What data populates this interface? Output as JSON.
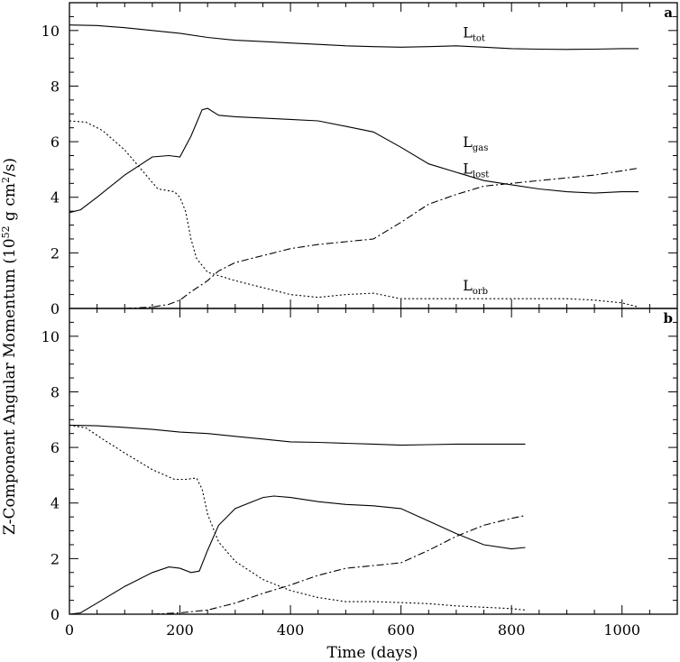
{
  "chart_data": [
    {
      "panel": "a",
      "type": "line",
      "xlabel": "Time (days)",
      "ylabel": "Z-Component Angular Momentum (10^52 g cm^2/s)",
      "xlim": [
        0,
        1100
      ],
      "ylim": [
        0,
        11
      ],
      "xticks": [
        0,
        200,
        400,
        600,
        800,
        1000
      ],
      "yticks": [
        0,
        2,
        4,
        6,
        8,
        10
      ],
      "series": [
        {
          "name": "tot",
          "label_main": "L",
          "label_sub": "tot",
          "style": "solid",
          "x": [
            0,
            50,
            100,
            150,
            200,
            250,
            300,
            350,
            400,
            450,
            500,
            550,
            600,
            650,
            700,
            750,
            800,
            850,
            900,
            950,
            1000,
            1030
          ],
          "y": [
            10.2,
            10.18,
            10.1,
            10.0,
            9.9,
            9.75,
            9.65,
            9.6,
            9.55,
            9.5,
            9.45,
            9.42,
            9.4,
            9.42,
            9.45,
            9.4,
            9.35,
            9.33,
            9.32,
            9.33,
            9.35,
            9.35
          ]
        },
        {
          "name": "gas",
          "label_main": "L",
          "label_sub": "gas",
          "style": "solid",
          "x": [
            0,
            20,
            50,
            100,
            150,
            180,
            200,
            220,
            240,
            250,
            270,
            300,
            350,
            400,
            450,
            500,
            550,
            600,
            650,
            700,
            750,
            800,
            850,
            900,
            950,
            1000,
            1030
          ],
          "y": [
            3.45,
            3.55,
            4.0,
            4.8,
            5.45,
            5.5,
            5.45,
            6.2,
            7.15,
            7.2,
            6.95,
            6.9,
            6.85,
            6.8,
            6.75,
            6.55,
            6.35,
            5.8,
            5.2,
            4.9,
            4.6,
            4.45,
            4.3,
            4.2,
            4.15,
            4.2,
            4.2
          ]
        },
        {
          "name": "lost",
          "label_main": "L",
          "label_sub": "lost",
          "style": "dashdot",
          "x": [
            100,
            150,
            180,
            200,
            220,
            250,
            270,
            300,
            350,
            400,
            450,
            500,
            550,
            600,
            650,
            700,
            750,
            800,
            850,
            900,
            950,
            1000,
            1030
          ],
          "y": [
            0.0,
            0.05,
            0.15,
            0.3,
            0.6,
            1.0,
            1.35,
            1.65,
            1.9,
            2.15,
            2.3,
            2.4,
            2.5,
            3.1,
            3.75,
            4.1,
            4.4,
            4.5,
            4.6,
            4.7,
            4.8,
            4.95,
            5.05
          ]
        },
        {
          "name": "orb",
          "label_main": "L",
          "label_sub": "orb",
          "style": "dotted",
          "x": [
            0,
            30,
            60,
            100,
            130,
            160,
            190,
            200,
            210,
            220,
            230,
            250,
            300,
            350,
            400,
            450,
            500,
            550,
            600,
            650,
            700,
            750,
            800,
            850,
            900,
            950,
            1000,
            1030
          ],
          "y": [
            6.75,
            6.7,
            6.4,
            5.7,
            5.0,
            4.3,
            4.2,
            4.0,
            3.5,
            2.5,
            1.8,
            1.3,
            1.0,
            0.75,
            0.5,
            0.4,
            0.5,
            0.55,
            0.35,
            0.35,
            0.35,
            0.35,
            0.35,
            0.35,
            0.35,
            0.3,
            0.2,
            0.05
          ]
        }
      ]
    },
    {
      "panel": "b",
      "type": "line",
      "xlabel": "Time (days)",
      "ylabel": "Z-Component Angular Momentum (10^52 g cm^2/s)",
      "xlim": [
        0,
        1100
      ],
      "ylim": [
        0,
        11
      ],
      "xticks": [
        0,
        200,
        400,
        600,
        800,
        1000
      ],
      "yticks": [
        0,
        2,
        4,
        6,
        8,
        10
      ],
      "series": [
        {
          "name": "tot",
          "style": "solid",
          "x": [
            0,
            50,
            100,
            150,
            200,
            250,
            300,
            350,
            400,
            450,
            500,
            550,
            600,
            650,
            700,
            750,
            800,
            825
          ],
          "y": [
            6.8,
            6.78,
            6.72,
            6.65,
            6.55,
            6.5,
            6.4,
            6.3,
            6.2,
            6.18,
            6.15,
            6.12,
            6.08,
            6.1,
            6.12,
            6.12,
            6.12,
            6.12
          ]
        },
        {
          "name": "gas",
          "style": "solid",
          "x": [
            0,
            20,
            50,
            100,
            150,
            180,
            200,
            220,
            235,
            250,
            270,
            300,
            350,
            370,
            400,
            450,
            500,
            550,
            600,
            650,
            700,
            750,
            800,
            825
          ],
          "y": [
            0.0,
            0.05,
            0.4,
            1.0,
            1.5,
            1.7,
            1.65,
            1.5,
            1.55,
            2.3,
            3.2,
            3.8,
            4.2,
            4.25,
            4.2,
            4.05,
            3.95,
            3.9,
            3.8,
            3.35,
            2.9,
            2.5,
            2.35,
            2.4
          ]
        },
        {
          "name": "lost",
          "style": "dashdot",
          "x": [
            150,
            200,
            250,
            300,
            350,
            400,
            450,
            500,
            550,
            600,
            650,
            700,
            750,
            800,
            825
          ],
          "y": [
            0.0,
            0.05,
            0.15,
            0.4,
            0.75,
            1.05,
            1.4,
            1.65,
            1.75,
            1.85,
            2.3,
            2.8,
            3.2,
            3.45,
            3.55
          ]
        },
        {
          "name": "orb",
          "style": "dotted",
          "x": [
            0,
            30,
            60,
            100,
            150,
            190,
            210,
            230,
            240,
            250,
            270,
            300,
            350,
            400,
            450,
            500,
            550,
            600,
            650,
            700,
            750,
            800,
            825
          ],
          "y": [
            6.8,
            6.7,
            6.3,
            5.8,
            5.2,
            4.85,
            4.85,
            4.9,
            4.5,
            3.6,
            2.6,
            1.9,
            1.25,
            0.85,
            0.6,
            0.45,
            0.45,
            0.42,
            0.38,
            0.3,
            0.25,
            0.2,
            0.15
          ]
        }
      ]
    }
  ]
}
